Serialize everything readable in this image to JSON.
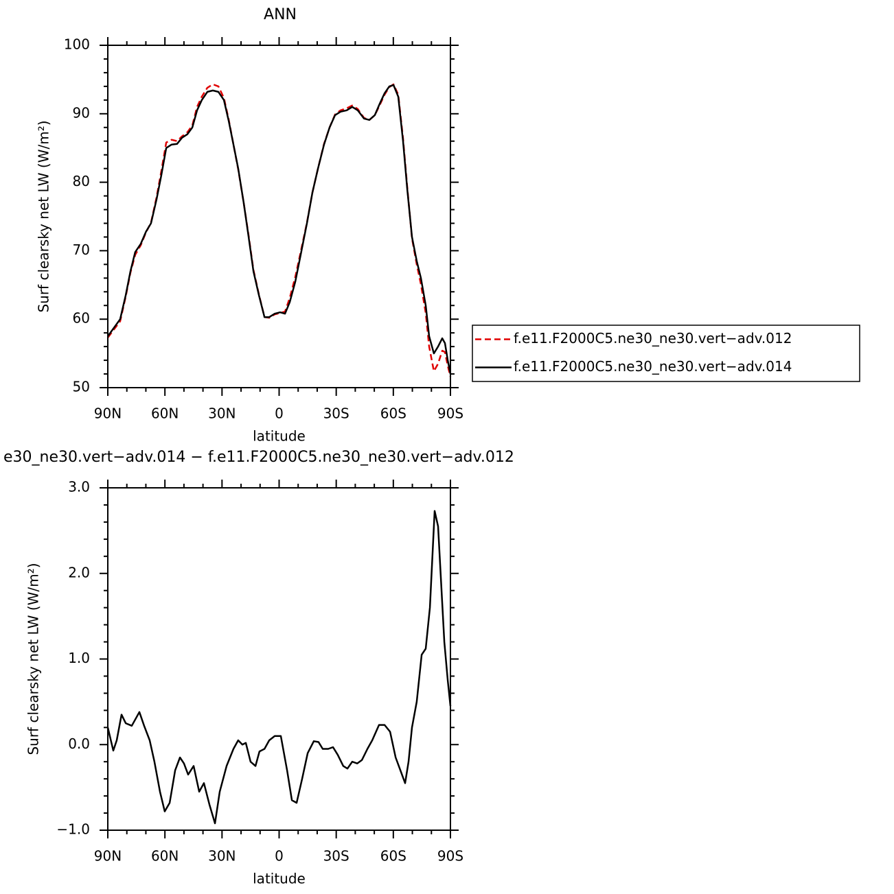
{
  "chart_data": [
    {
      "type": "line",
      "title": "ANN",
      "ylabel": "Surf clearsky net LW (W/m²)",
      "xlabel": "latitude",
      "x": [
        90,
        83.5,
        80.6,
        78.1,
        75.6,
        72.7,
        69.9,
        67.3,
        64.4,
        61.9,
        59.3,
        56.5,
        53.6,
        51,
        48.2,
        45.6,
        43.1,
        40.6,
        37.7,
        34.8,
        31.9,
        29,
        26.5,
        24,
        21.5,
        18.6,
        16,
        13.5,
        10.6,
        7.7,
        5.2,
        2.3,
        -0.5,
        -3.1,
        -5.6,
        -8.5,
        -11.4,
        -14.6,
        -17.5,
        -20.4,
        -23.6,
        -26.5,
        -29.4,
        -32.3,
        -35.5,
        -38.4,
        -41.3,
        -44.6,
        -47.4,
        -50.3,
        -52.9,
        -55.4,
        -57.9,
        -60.1,
        -62.6,
        -65.1,
        -67.3,
        -69.8,
        -72.3,
        -74.5,
        -77,
        -78.8,
        -81.3,
        -83.5,
        -85.7,
        -87.1,
        -88.6,
        -90
      ],
      "series": [
        {
          "name": "f.e11.F2000C5.ne30_ne30.vert−adv.012",
          "color": "#e00000",
          "dash": true,
          "values": [
            57.3,
            59.7,
            63.3,
            66.8,
            69.4,
            70.8,
            72.7,
            74.1,
            77.8,
            81.6,
            85.8,
            86.2,
            86,
            86.7,
            87.3,
            88.3,
            91,
            92.5,
            93.8,
            94.3,
            94,
            92.3,
            89.2,
            85.5,
            81.9,
            77,
            72.2,
            67.2,
            63.6,
            60.3,
            60.2,
            60.7,
            60.9,
            61.1,
            63.1,
            66.2,
            69.9,
            74.1,
            78.5,
            82,
            85.6,
            88,
            89.9,
            90.5,
            90.8,
            91.2,
            90.7,
            89.4,
            89.1,
            89.8,
            91.3,
            92.8,
            93.9,
            94.3,
            92.8,
            86.4,
            79.3,
            71.8,
            68,
            65.1,
            60.9,
            56,
            52.4,
            53.5,
            55.4,
            55.2,
            53.2,
            51.6
          ]
        },
        {
          "name": "f.e11.F2000C5.ne30_ne30.vert−adv.014",
          "color": "#000000",
          "dash": false,
          "values": [
            57.5,
            60,
            63.5,
            67,
            69.8,
            71,
            72.8,
            74,
            77.5,
            81,
            85,
            85.5,
            85.6,
            86.5,
            87,
            88,
            90.5,
            92,
            93.2,
            93.4,
            93.2,
            92,
            89,
            85.5,
            82,
            77,
            72,
            67,
            63.5,
            60.3,
            60.3,
            60.8,
            61,
            60.8,
            62.5,
            65.5,
            69.5,
            74,
            78.5,
            82,
            85.5,
            88,
            89.8,
            90.3,
            90.5,
            91,
            90.5,
            89.3,
            89.1,
            89.8,
            91.5,
            93,
            94,
            94.2,
            92.5,
            86,
            79,
            72,
            68.5,
            66,
            62,
            57.5,
            55,
            56,
            57.2,
            56.5,
            54,
            52
          ]
        }
      ],
      "xlim": [
        90,
        -90
      ],
      "xticks": [
        {
          "value": 90,
          "label": "90N"
        },
        {
          "value": 60,
          "label": "60N"
        },
        {
          "value": 30,
          "label": "30N"
        },
        0,
        {
          "value": -30,
          "label": "30S"
        },
        {
          "value": -60,
          "label": "60S"
        },
        {
          "value": -90,
          "label": "90S"
        }
      ],
      "xminorticks": [
        80,
        70,
        50,
        40,
        20,
        10,
        -10,
        -20,
        -40,
        -50,
        -70,
        -80
      ],
      "ylim": [
        50,
        100
      ],
      "yticks": [
        50,
        60,
        70,
        80,
        90,
        100
      ],
      "yminorticks": [
        52,
        54,
        56,
        58,
        62,
        64,
        66,
        68,
        72,
        74,
        76,
        78,
        82,
        84,
        86,
        88,
        92,
        94,
        96,
        98
      ],
      "legend": "right"
    },
    {
      "type": "line",
      "title": "e30_ne30.vert−adv.014 − f.e11.F2000C5.ne30_ne30.vert−adv.012",
      "ylabel": "Surf clearsky net LW (W/m²)",
      "xlabel": "latitude",
      "x": [
        90,
        87.1,
        85.3,
        82.8,
        80.6,
        77.4,
        73.4,
        70.9,
        68,
        65.5,
        62.6,
        60.1,
        57.5,
        54.6,
        52.1,
        50,
        47.8,
        44.9,
        42,
        39.5,
        36.6,
        33.7,
        31.2,
        27.6,
        24,
        21.5,
        19.3,
        17.5,
        15,
        12.4,
        10.3,
        7.7,
        5.2,
        2.3,
        -0.9,
        -4.2,
        -6.7,
        -9.2,
        -12.1,
        -15,
        -18.2,
        -20.7,
        -22.9,
        -25.8,
        -28.3,
        -30.8,
        -33.7,
        -35.9,
        -38.4,
        -41,
        -43.5,
        -46.4,
        -48.9,
        -52.5,
        -55.4,
        -58.3,
        -61.2,
        -63.7,
        -66.2,
        -68,
        -69.8,
        -72.3,
        -74.9,
        -77,
        -79.2,
        -81.7,
        -83.5,
        -86.8,
        -88.6,
        -90
      ],
      "values": [
        0.2,
        -0.07,
        0.05,
        0.35,
        0.25,
        0.22,
        0.38,
        0.22,
        0.05,
        -0.2,
        -0.55,
        -0.78,
        -0.68,
        -0.3,
        -0.15,
        -0.22,
        -0.35,
        -0.25,
        -0.55,
        -0.45,
        -0.7,
        -0.92,
        -0.55,
        -0.25,
        -0.05,
        0.05,
        0,
        0.02,
        -0.2,
        -0.25,
        -0.08,
        -0.05,
        0.05,
        0.1,
        0.1,
        -0.3,
        -0.65,
        -0.68,
        -0.4,
        -0.1,
        0.04,
        0.03,
        -0.05,
        -0.05,
        -0.03,
        -0.12,
        -0.25,
        -0.28,
        -0.2,
        -0.22,
        -0.18,
        -0.05,
        0.05,
        0.23,
        0.23,
        0.15,
        -0.15,
        -0.3,
        -0.45,
        -0.2,
        0.2,
        0.5,
        1.05,
        1.12,
        1.6,
        2.73,
        2.55,
        1.2,
        0.75,
        0.45
      ],
      "color": "#000000",
      "xlim": [
        90,
        -90
      ],
      "xticks": [
        {
          "value": 90,
          "label": "90N"
        },
        {
          "value": 60,
          "label": "60N"
        },
        {
          "value": 30,
          "label": "30N"
        },
        0,
        {
          "value": -30,
          "label": "30S"
        },
        {
          "value": -60,
          "label": "60S"
        },
        {
          "value": -90,
          "label": "90S"
        }
      ],
      "xminorticks": [
        80,
        70,
        50,
        40,
        20,
        10,
        -10,
        -20,
        -40,
        -50,
        -70,
        -80
      ],
      "ylim": [
        -1,
        3
      ],
      "yticks": [
        {
          "value": -1,
          "label": "−1.0"
        },
        {
          "value": 0,
          "label": "0.0"
        },
        {
          "value": 1,
          "label": "1.0"
        },
        {
          "value": 2,
          "label": "2.0"
        },
        {
          "value": 3,
          "label": "3.0"
        }
      ],
      "yminorticks": [
        -0.8,
        -0.6,
        -0.4,
        -0.2,
        0.2,
        0.4,
        0.6,
        0.8,
        1.2,
        1.4,
        1.6,
        1.8,
        2.2,
        2.4,
        2.6,
        2.8
      ]
    }
  ]
}
